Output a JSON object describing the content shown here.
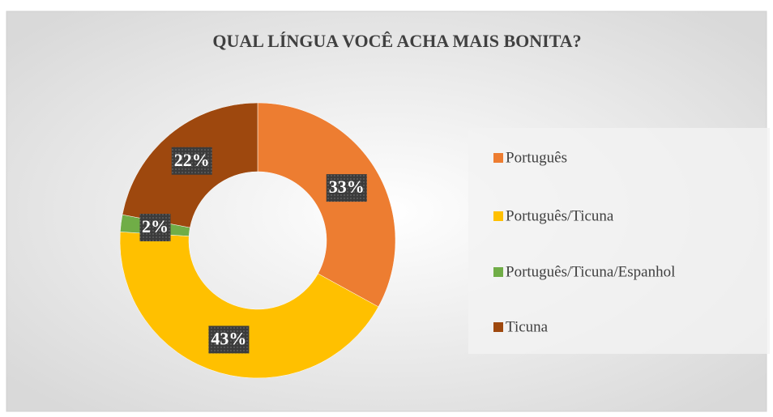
{
  "chart_data": {
    "type": "donut",
    "title": "QUAL LÍNGUA VOCÊ ACHA MAIS BONITA?",
    "categories": [
      "Português",
      "Português/Ticuna",
      "Português/Ticuna/Espanhol",
      "Ticuna"
    ],
    "values": [
      33,
      43,
      2,
      22
    ],
    "value_labels": [
      "33%",
      "43%",
      "2%",
      "22%"
    ],
    "colors": [
      "#ED7D31",
      "#FFC000",
      "#70AD47",
      "#9E480E"
    ],
    "legend": "right"
  }
}
